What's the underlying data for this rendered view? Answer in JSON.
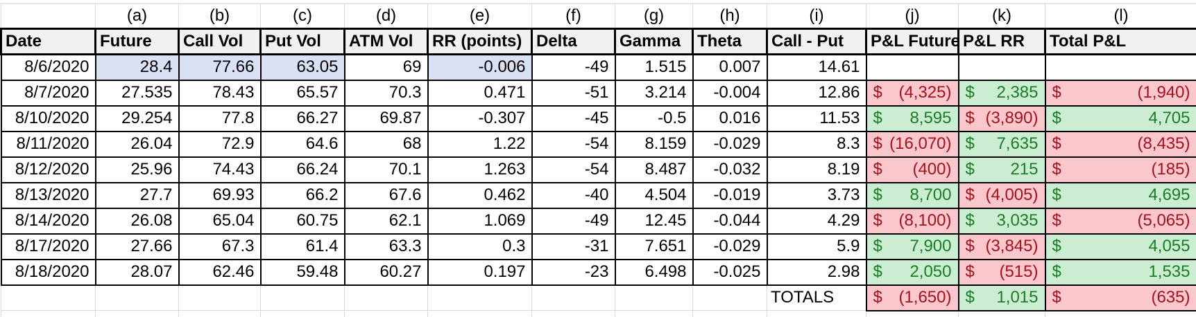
{
  "table": {
    "currency_symbol": "$",
    "columns": [
      {
        "key": "date",
        "letter": "",
        "label": "Date"
      },
      {
        "key": "future",
        "letter": "(a)",
        "label": "Future"
      },
      {
        "key": "call_vol",
        "letter": "(b)",
        "label": "Call Vol"
      },
      {
        "key": "put_vol",
        "letter": "(c)",
        "label": "Put Vol"
      },
      {
        "key": "atm_vol",
        "letter": "(d)",
        "label": "ATM Vol"
      },
      {
        "key": "rr_points",
        "letter": "(e)",
        "label": "RR (points)"
      },
      {
        "key": "delta",
        "letter": "(f)",
        "label": "Delta"
      },
      {
        "key": "gamma",
        "letter": "(g)",
        "label": "Gamma"
      },
      {
        "key": "theta",
        "letter": "(h)",
        "label": "Theta"
      },
      {
        "key": "call_minus_put",
        "letter": "(i)",
        "label": "Call - Put"
      },
      {
        "key": "pnl_future",
        "letter": "(j)",
        "label": "P&L Future"
      },
      {
        "key": "pnl_rr",
        "letter": "(k)",
        "label": "P&L RR"
      },
      {
        "key": "total_pnl",
        "letter": "(l)",
        "label": "Total P&L"
      }
    ],
    "pnl_keys": [
      "pnl_future",
      "pnl_rr",
      "total_pnl"
    ],
    "rows": [
      {
        "date": "8/6/2020",
        "future": "28.4",
        "call_vol": "77.66",
        "put_vol": "63.05",
        "atm_vol": "69",
        "rr_points": "-0.006",
        "delta": "-49",
        "gamma": "1.515",
        "theta": "0.007",
        "call_minus_put": "14.61",
        "blue_cells": [
          "future",
          "call_vol",
          "put_vol",
          "rr_points"
        ],
        "pnl_future": null,
        "pnl_rr": null,
        "total_pnl": null
      },
      {
        "date": "8/7/2020",
        "future": "27.535",
        "call_vol": "78.43",
        "put_vol": "65.57",
        "atm_vol": "70.3",
        "rr_points": "0.471",
        "delta": "-51",
        "gamma": "3.214",
        "theta": "-0.004",
        "call_minus_put": "12.86",
        "blue_cells": [],
        "pnl_future": {
          "amount": "(4,325)",
          "tone": "negative"
        },
        "pnl_rr": {
          "amount": "2,385",
          "tone": "positive"
        },
        "total_pnl": {
          "amount": "(1,940)",
          "tone": "negative"
        }
      },
      {
        "date": "8/10/2020",
        "future": "29.254",
        "call_vol": "77.8",
        "put_vol": "66.27",
        "atm_vol": "69.87",
        "rr_points": "-0.307",
        "delta": "-45",
        "gamma": "-0.5",
        "theta": "0.016",
        "call_minus_put": "11.53",
        "blue_cells": [],
        "pnl_future": {
          "amount": "8,595",
          "tone": "positive"
        },
        "pnl_rr": {
          "amount": "(3,890)",
          "tone": "negative"
        },
        "total_pnl": {
          "amount": "4,705",
          "tone": "positive"
        }
      },
      {
        "date": "8/11/2020",
        "future": "26.04",
        "call_vol": "72.9",
        "put_vol": "64.6",
        "atm_vol": "68",
        "rr_points": "1.22",
        "delta": "-54",
        "gamma": "8.159",
        "theta": "-0.029",
        "call_minus_put": "8.3",
        "blue_cells": [],
        "pnl_future": {
          "amount": "(16,070)",
          "tone": "negative"
        },
        "pnl_rr": {
          "amount": "7,635",
          "tone": "positive"
        },
        "total_pnl": {
          "amount": "(8,435)",
          "tone": "negative"
        }
      },
      {
        "date": "8/12/2020",
        "future": "25.96",
        "call_vol": "74.43",
        "put_vol": "66.24",
        "atm_vol": "70.1",
        "rr_points": "1.263",
        "delta": "-54",
        "gamma": "8.487",
        "theta": "-0.032",
        "call_minus_put": "8.19",
        "blue_cells": [],
        "pnl_future": {
          "amount": "(400)",
          "tone": "negative"
        },
        "pnl_rr": {
          "amount": "215",
          "tone": "positive"
        },
        "total_pnl": {
          "amount": "(185)",
          "tone": "negative"
        }
      },
      {
        "date": "8/13/2020",
        "future": "27.7",
        "call_vol": "69.93",
        "put_vol": "66.2",
        "atm_vol": "67.6",
        "rr_points": "0.462",
        "delta": "-40",
        "gamma": "4.504",
        "theta": "-0.019",
        "call_minus_put": "3.73",
        "blue_cells": [],
        "pnl_future": {
          "amount": "8,700",
          "tone": "positive"
        },
        "pnl_rr": {
          "amount": "(4,005)",
          "tone": "negative"
        },
        "total_pnl": {
          "amount": "4,695",
          "tone": "positive"
        }
      },
      {
        "date": "8/14/2020",
        "future": "26.08",
        "call_vol": "65.04",
        "put_vol": "60.75",
        "atm_vol": "62.1",
        "rr_points": "1.069",
        "delta": "-49",
        "gamma": "12.45",
        "theta": "-0.044",
        "call_minus_put": "4.29",
        "blue_cells": [],
        "pnl_future": {
          "amount": "(8,100)",
          "tone": "negative"
        },
        "pnl_rr": {
          "amount": "3,035",
          "tone": "positive"
        },
        "total_pnl": {
          "amount": "(5,065)",
          "tone": "negative"
        }
      },
      {
        "date": "8/17/2020",
        "future": "27.66",
        "call_vol": "67.3",
        "put_vol": "61.4",
        "atm_vol": "63.3",
        "rr_points": "0.3",
        "delta": "-31",
        "gamma": "7.651",
        "theta": "-0.029",
        "call_minus_put": "5.9",
        "blue_cells": [],
        "pnl_future": {
          "amount": "7,900",
          "tone": "positive"
        },
        "pnl_rr": {
          "amount": "(3,845)",
          "tone": "negative"
        },
        "total_pnl": {
          "amount": "4,055",
          "tone": "positive"
        }
      },
      {
        "date": "8/18/2020",
        "future": "28.07",
        "call_vol": "62.46",
        "put_vol": "59.48",
        "atm_vol": "60.27",
        "rr_points": "0.197",
        "delta": "-23",
        "gamma": "6.498",
        "theta": "-0.025",
        "call_minus_put": "2.98",
        "blue_cells": [],
        "pnl_future": {
          "amount": "2,050",
          "tone": "positive"
        },
        "pnl_rr": {
          "amount": "(515)",
          "tone": "negative"
        },
        "total_pnl": {
          "amount": "1,535",
          "tone": "positive"
        }
      }
    ],
    "totals_row": {
      "label": "TOTALS",
      "label_column": "call_minus_put",
      "pnl_future": {
        "amount": "(1,650)",
        "tone": "negative"
      },
      "pnl_rr": {
        "amount": "1,015",
        "tone": "positive"
      },
      "total_pnl": {
        "amount": "(635)",
        "tone": "negative"
      }
    }
  },
  "colors": {
    "blue_fill": "#D9E1F2",
    "header_fill": "#F1F1F1",
    "negative_fill": "#F9C7CC",
    "negative_text": "#A5121C",
    "positive_fill": "#CBEDD1",
    "positive_text": "#1B7C26",
    "gridline": "#D9D9D9",
    "border": "#000000"
  }
}
